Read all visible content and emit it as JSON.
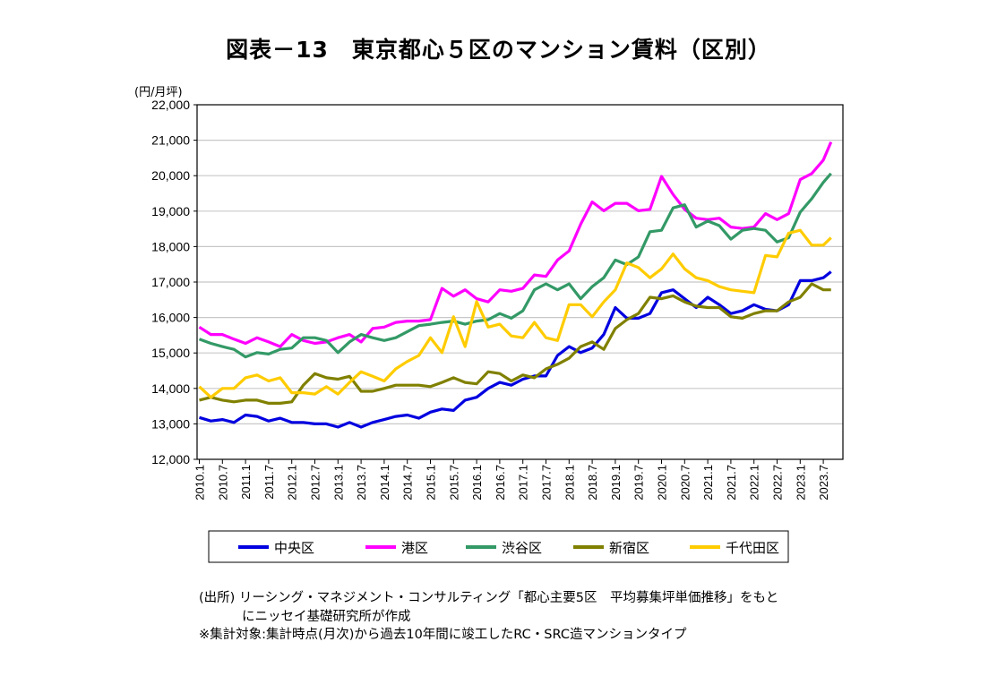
{
  "title": "図表－13　東京都心５区のマンション賃料（区別）",
  "notes": [
    "(出所) リーシング・マネジメント・コンサルティング「都心主要5区　平均募集坪単価推移」をもと",
    "にニッセイ基礎研究所が作成",
    "※集計対象:集計時点(月次)から過去10年間に竣工したRC・SRC造マンションタイプ"
  ],
  "chart_data": {
    "type": "line",
    "title": "図表－13　東京都心５区のマンション賃料（区別）",
    "ylabel": "(円/月坪)",
    "xlabel": "",
    "ylim": [
      12000,
      22000
    ],
    "yticks": [
      "12,000",
      "13,000",
      "14,000",
      "15,000",
      "16,000",
      "17,000",
      "18,000",
      "19,000",
      "20,000",
      "21,000",
      "22,000"
    ],
    "xticks": [
      "2010.1",
      "2010.7",
      "2011.1",
      "2011.7",
      "2012.1",
      "2012.7",
      "2013.1",
      "2013.7",
      "2014.1",
      "2014.7",
      "2015.1",
      "2015.7",
      "2016.1",
      "2016.7",
      "2017.1",
      "2017.7",
      "2018.1",
      "2018.7",
      "2019.1",
      "2019.7",
      "2020.1",
      "2020.7",
      "2021.1",
      "2021.7",
      "2022.1",
      "2022.7",
      "2023.1",
      "2023.7"
    ],
    "grid": true,
    "legend_position": "bottom",
    "x": [
      "2010.1",
      "2010.4",
      "2010.7",
      "2010.10",
      "2011.1",
      "2011.4",
      "2011.7",
      "2011.10",
      "2012.1",
      "2012.4",
      "2012.7",
      "2012.10",
      "2013.1",
      "2013.4",
      "2013.7",
      "2013.10",
      "2014.1",
      "2014.4",
      "2014.7",
      "2014.10",
      "2015.1",
      "2015.4",
      "2015.7",
      "2015.10",
      "2016.1",
      "2016.4",
      "2016.7",
      "2016.10",
      "2017.1",
      "2017.4",
      "2017.7",
      "2017.10",
      "2018.1",
      "2018.4",
      "2018.7",
      "2018.10",
      "2019.1",
      "2019.4",
      "2019.7",
      "2019.10",
      "2020.1",
      "2020.4",
      "2020.7",
      "2020.10",
      "2021.1",
      "2021.4",
      "2021.7",
      "2021.10",
      "2022.1",
      "2022.4",
      "2022.7",
      "2022.10",
      "2023.1",
      "2023.4",
      "2023.7",
      "2023.9"
    ],
    "series": [
      {
        "name": "中央区",
        "color": "#0000e0",
        "values": [
          13180,
          13080,
          13120,
          13040,
          13250,
          13210,
          13080,
          13160,
          13040,
          13040,
          13000,
          13000,
          12910,
          13040,
          12910,
          13040,
          13120,
          13210,
          13250,
          13160,
          13330,
          13420,
          13380,
          13670,
          13750,
          14000,
          14170,
          14090,
          14260,
          14350,
          14350,
          14930,
          15180,
          15010,
          15140,
          15520,
          16280,
          15980,
          15980,
          16110,
          16700,
          16780,
          16530,
          16280,
          16570,
          16360,
          16110,
          16190,
          16360,
          16230,
          16190,
          16360,
          17040,
          17040,
          17120,
          17290
        ]
      },
      {
        "name": "港区",
        "color": "#ff00ff",
        "values": [
          15730,
          15520,
          15520,
          15390,
          15270,
          15430,
          15310,
          15180,
          15520,
          15350,
          15270,
          15310,
          15430,
          15520,
          15310,
          15690,
          15730,
          15860,
          15900,
          15900,
          15940,
          16820,
          16600,
          16780,
          16530,
          16440,
          16780,
          16740,
          16820,
          17200,
          17160,
          17620,
          17880,
          18630,
          19260,
          19010,
          19220,
          19220,
          19010,
          19050,
          19980,
          19470,
          19050,
          18800,
          18760,
          18800,
          18550,
          18510,
          18550,
          18930,
          18760,
          18930,
          19890,
          20060,
          20440,
          20950
        ]
      },
      {
        "name": "渋谷区",
        "color": "#339966",
        "values": [
          15390,
          15270,
          15180,
          15100,
          14890,
          15010,
          14970,
          15100,
          15140,
          15430,
          15430,
          15350,
          15010,
          15310,
          15520,
          15430,
          15350,
          15430,
          15600,
          15770,
          15810,
          15860,
          15900,
          15810,
          15900,
          15940,
          16110,
          15980,
          16190,
          16780,
          16950,
          16780,
          16950,
          16530,
          16870,
          17120,
          17620,
          17490,
          17710,
          18420,
          18460,
          19090,
          19180,
          18550,
          18720,
          18590,
          18210,
          18460,
          18510,
          18460,
          18130,
          18250,
          18970,
          19350,
          19810,
          20060
        ]
      },
      {
        "name": "新宿区",
        "color": "#808000",
        "values": [
          13670,
          13750,
          13670,
          13620,
          13670,
          13670,
          13580,
          13580,
          13620,
          14090,
          14420,
          14300,
          14260,
          14340,
          13920,
          13920,
          14000,
          14090,
          14090,
          14090,
          14050,
          14170,
          14300,
          14170,
          14130,
          14470,
          14420,
          14210,
          14380,
          14300,
          14550,
          14680,
          14850,
          15180,
          15310,
          15100,
          15690,
          15940,
          16110,
          16570,
          16530,
          16610,
          16440,
          16320,
          16280,
          16280,
          16020,
          15980,
          16110,
          16190,
          16190,
          16440,
          16570,
          16950,
          16780,
          16780
        ]
      },
      {
        "name": "千代田区",
        "color": "#ffcc00",
        "values": [
          14050,
          13750,
          14000,
          14000,
          14300,
          14380,
          14210,
          14300,
          13880,
          13880,
          13840,
          14050,
          13840,
          14170,
          14470,
          14340,
          14210,
          14550,
          14760,
          14930,
          15430,
          15010,
          16020,
          15180,
          16450,
          15730,
          15810,
          15480,
          15430,
          15860,
          15430,
          15350,
          16360,
          16360,
          16020,
          16440,
          16780,
          17540,
          17410,
          17120,
          17370,
          17790,
          17370,
          17120,
          17040,
          16870,
          16780,
          16740,
          16700,
          17750,
          17710,
          18380,
          18460,
          18040,
          18040,
          18250
        ]
      }
    ]
  }
}
